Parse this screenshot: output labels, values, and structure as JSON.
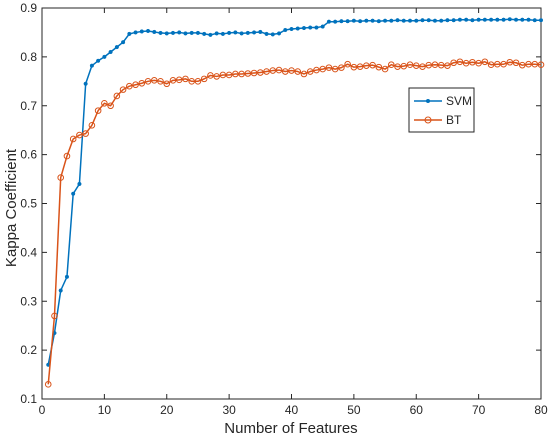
{
  "chart_data": {
    "type": "line",
    "title": "",
    "xlabel": "Number of Features",
    "ylabel": "Kappa Coefficient",
    "xlim": [
      0,
      80
    ],
    "ylim": [
      0.1,
      0.9
    ],
    "xticks": [
      "0",
      "10",
      "20",
      "30",
      "40",
      "50",
      "60",
      "70",
      "80"
    ],
    "yticks": [
      "0.1",
      "0.2",
      "0.3",
      "0.4",
      "0.5",
      "0.6",
      "0.7",
      "0.8",
      "0.9"
    ],
    "grid": false,
    "legend_position": "top-right",
    "x": [
      1,
      2,
      3,
      4,
      5,
      6,
      7,
      8,
      9,
      10,
      11,
      12,
      13,
      14,
      15,
      16,
      17,
      18,
      19,
      20,
      21,
      22,
      23,
      24,
      25,
      26,
      27,
      28,
      29,
      30,
      31,
      32,
      33,
      34,
      35,
      36,
      37,
      38,
      39,
      40,
      41,
      42,
      43,
      44,
      45,
      46,
      47,
      48,
      49,
      50,
      51,
      52,
      53,
      54,
      55,
      56,
      57,
      58,
      59,
      60,
      61,
      62,
      63,
      64,
      65,
      66,
      67,
      68,
      69,
      70,
      71,
      72,
      73,
      74,
      75,
      76,
      77,
      78,
      79,
      80
    ],
    "series": [
      {
        "name": "SVM",
        "color": "#0072BD",
        "marker": "dot",
        "values": [
          0.17,
          0.235,
          0.322,
          0.35,
          0.52,
          0.54,
          0.745,
          0.782,
          0.792,
          0.8,
          0.81,
          0.82,
          0.83,
          0.847,
          0.85,
          0.852,
          0.853,
          0.851,
          0.849,
          0.848,
          0.849,
          0.85,
          0.848,
          0.849,
          0.849,
          0.847,
          0.845,
          0.848,
          0.847,
          0.849,
          0.85,
          0.848,
          0.849,
          0.85,
          0.851,
          0.847,
          0.846,
          0.848,
          0.855,
          0.857,
          0.858,
          0.859,
          0.86,
          0.86,
          0.862,
          0.872,
          0.872,
          0.873,
          0.873,
          0.874,
          0.873,
          0.874,
          0.874,
          0.873,
          0.874,
          0.874,
          0.875,
          0.874,
          0.874,
          0.874,
          0.875,
          0.875,
          0.874,
          0.874,
          0.875,
          0.875,
          0.876,
          0.876,
          0.875,
          0.876,
          0.876,
          0.876,
          0.876,
          0.876,
          0.877,
          0.876,
          0.876,
          0.876,
          0.875,
          0.875
        ]
      },
      {
        "name": "BT",
        "color": "#D95319",
        "marker": "circle",
        "values": [
          0.13,
          0.27,
          0.553,
          0.597,
          0.632,
          0.64,
          0.643,
          0.66,
          0.69,
          0.705,
          0.7,
          0.72,
          0.733,
          0.74,
          0.743,
          0.746,
          0.75,
          0.752,
          0.75,
          0.745,
          0.752,
          0.753,
          0.755,
          0.75,
          0.75,
          0.755,
          0.762,
          0.76,
          0.763,
          0.763,
          0.765,
          0.765,
          0.766,
          0.767,
          0.768,
          0.77,
          0.772,
          0.773,
          0.77,
          0.772,
          0.77,
          0.765,
          0.77,
          0.773,
          0.775,
          0.778,
          0.775,
          0.778,
          0.785,
          0.779,
          0.78,
          0.782,
          0.783,
          0.779,
          0.775,
          0.784,
          0.78,
          0.781,
          0.784,
          0.782,
          0.78,
          0.783,
          0.784,
          0.783,
          0.782,
          0.788,
          0.79,
          0.787,
          0.789,
          0.787,
          0.79,
          0.784,
          0.785,
          0.785,
          0.789,
          0.788,
          0.783,
          0.785,
          0.785,
          0.784
        ]
      }
    ]
  }
}
